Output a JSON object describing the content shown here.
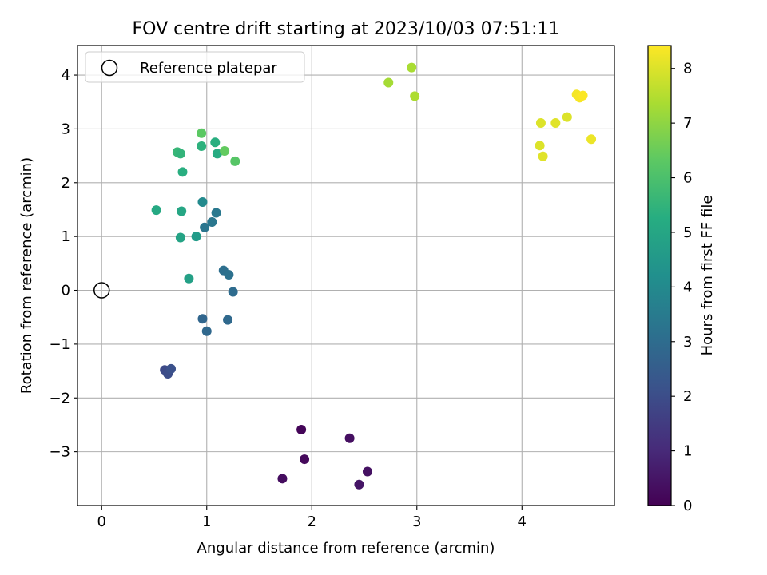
{
  "chart_data": {
    "type": "scatter",
    "title": "FOV centre drift starting at 2023/10/03 07:51:11",
    "xlabel": "Angular distance from reference (arcmin)",
    "ylabel": "Rotation from reference (arcmin)",
    "xlim": [
      -0.23,
      4.88
    ],
    "ylim": [
      -4.0,
      4.55
    ],
    "xticks": [
      0,
      1,
      2,
      3,
      4
    ],
    "yticks": [
      -3,
      -2,
      -1,
      0,
      1,
      2,
      3,
      4
    ],
    "xtick_labels": [
      "0",
      "1",
      "2",
      "3",
      "4"
    ],
    "ytick_labels": [
      "−3",
      "−2",
      "−1",
      "0",
      "1",
      "2",
      "3",
      "4"
    ],
    "grid": true,
    "legend": {
      "placement": "top-left",
      "entries": [
        "Reference platepar"
      ]
    },
    "reference_point": {
      "x": 0,
      "y": 0
    },
    "colorbar": {
      "label": "Hours from first FF file",
      "range": [
        0,
        8.42
      ],
      "ticks": [
        0,
        1,
        2,
        3,
        4,
        5,
        6,
        7,
        8
      ],
      "tick_labels": [
        "0",
        "1",
        "2",
        "3",
        "4",
        "5",
        "6",
        "7",
        "8"
      ],
      "colormap": "viridis"
    },
    "points": [
      {
        "x": 1.9,
        "y": -2.59,
        "c": 0.1
      },
      {
        "x": 1.93,
        "y": -3.14,
        "c": 0.2
      },
      {
        "x": 1.72,
        "y": -3.5,
        "c": 0.3
      },
      {
        "x": 2.36,
        "y": -2.75,
        "c": 0.35
      },
      {
        "x": 2.53,
        "y": -3.37,
        "c": 0.4
      },
      {
        "x": 2.45,
        "y": -3.61,
        "c": 0.5
      },
      {
        "x": 0.6,
        "y": -1.48,
        "c": 1.9
      },
      {
        "x": 0.63,
        "y": -1.55,
        "c": 2.0
      },
      {
        "x": 0.66,
        "y": -1.46,
        "c": 2.1
      },
      {
        "x": 0.96,
        "y": -0.53,
        "c": 2.8
      },
      {
        "x": 1.0,
        "y": -0.76,
        "c": 2.85
      },
      {
        "x": 1.2,
        "y": -0.55,
        "c": 2.9
      },
      {
        "x": 1.25,
        "y": -0.03,
        "c": 3.0
      },
      {
        "x": 1.16,
        "y": 0.37,
        "c": 3.1
      },
      {
        "x": 1.21,
        "y": 0.29,
        "c": 3.15
      },
      {
        "x": 0.98,
        "y": 1.17,
        "c": 3.3
      },
      {
        "x": 1.05,
        "y": 1.27,
        "c": 3.35
      },
      {
        "x": 1.09,
        "y": 1.44,
        "c": 3.4
      },
      {
        "x": 0.96,
        "y": 1.64,
        "c": 4.0
      },
      {
        "x": 0.9,
        "y": 1.0,
        "c": 4.6
      },
      {
        "x": 0.83,
        "y": 0.22,
        "c": 4.8
      },
      {
        "x": 0.75,
        "y": 0.98,
        "c": 4.9
      },
      {
        "x": 0.76,
        "y": 1.47,
        "c": 5.0
      },
      {
        "x": 0.52,
        "y": 1.49,
        "c": 5.1
      },
      {
        "x": 0.77,
        "y": 2.2,
        "c": 5.3
      },
      {
        "x": 0.95,
        "y": 2.68,
        "c": 5.4
      },
      {
        "x": 1.08,
        "y": 2.75,
        "c": 5.3
      },
      {
        "x": 1.1,
        "y": 2.54,
        "c": 5.2
      },
      {
        "x": 0.72,
        "y": 2.57,
        "c": 5.6
      },
      {
        "x": 0.75,
        "y": 2.54,
        "c": 5.5
      },
      {
        "x": 0.95,
        "y": 2.92,
        "c": 6.3
      },
      {
        "x": 1.17,
        "y": 2.59,
        "c": 6.4
      },
      {
        "x": 1.27,
        "y": 2.4,
        "c": 6.2
      },
      {
        "x": 2.73,
        "y": 3.86,
        "c": 7.3
      },
      {
        "x": 2.95,
        "y": 4.14,
        "c": 7.35
      },
      {
        "x": 2.98,
        "y": 3.61,
        "c": 7.4
      },
      {
        "x": 4.18,
        "y": 3.11,
        "c": 8.0
      },
      {
        "x": 4.32,
        "y": 3.11,
        "c": 8.05
      },
      {
        "x": 4.43,
        "y": 3.22,
        "c": 8.0
      },
      {
        "x": 4.17,
        "y": 2.69,
        "c": 8.0
      },
      {
        "x": 4.2,
        "y": 2.49,
        "c": 8.05
      },
      {
        "x": 4.52,
        "y": 3.64,
        "c": 8.3
      },
      {
        "x": 4.55,
        "y": 3.58,
        "c": 8.35
      },
      {
        "x": 4.58,
        "y": 3.62,
        "c": 8.4
      },
      {
        "x": 4.66,
        "y": 2.81,
        "c": 8.2
      }
    ]
  }
}
